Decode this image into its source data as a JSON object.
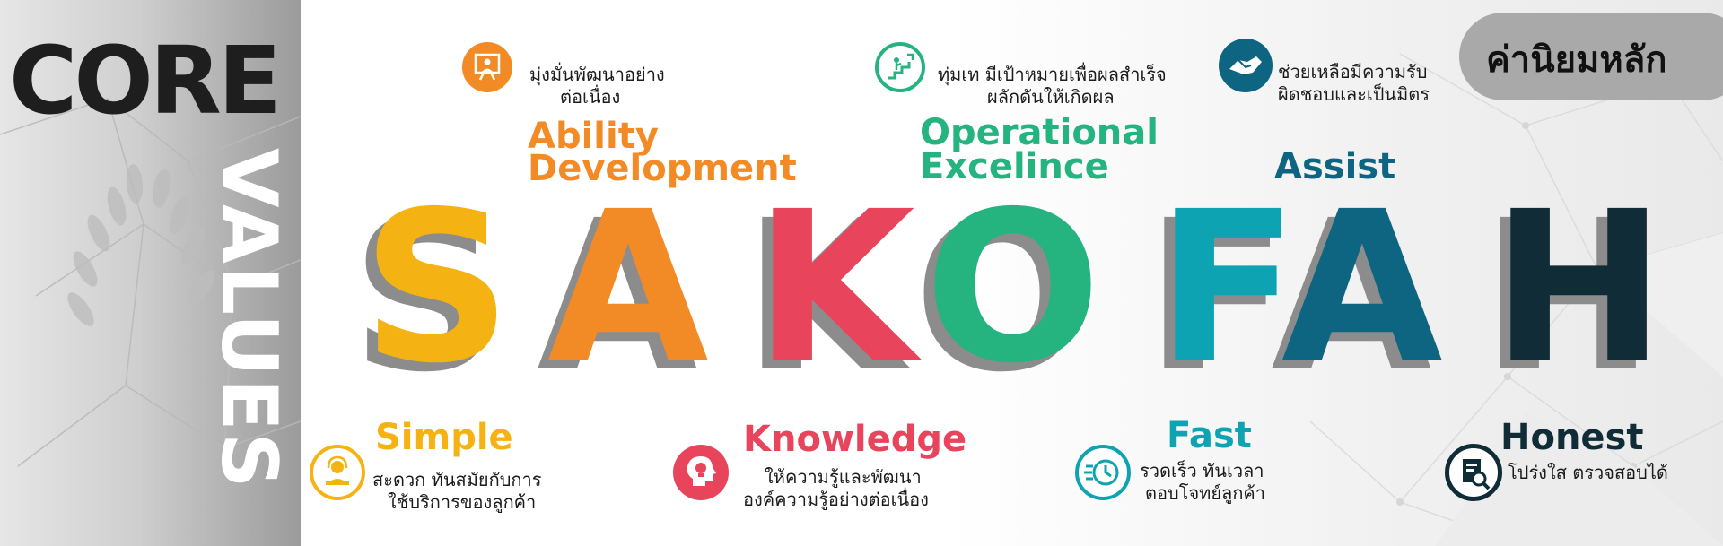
{
  "left_panel": {
    "core": "CORE",
    "values": "VALUES"
  },
  "badge": {
    "label": "ค่านิยมหลัก"
  },
  "letters": [
    {
      "char": "S",
      "color": "#f5b313"
    },
    {
      "char": "A",
      "color": "#f28a25"
    },
    {
      "char": "K",
      "color": "#e8455c"
    },
    {
      "char": "O",
      "color": "#25b380"
    },
    {
      "char": "F",
      "color": "#0ea3b2"
    },
    {
      "char": "A",
      "color": "#0e6582"
    },
    {
      "char": "H",
      "color": "#0f2c37"
    }
  ],
  "values_top": {
    "ability": {
      "title_line1": "Ability",
      "title_line2": "Development",
      "desc_line1": "มุ่งมั่นพัฒนาอย่าง",
      "desc_line2": "ต่อเนื่อง",
      "color": "#f28a25"
    },
    "operational": {
      "title_line1": "Operational",
      "title_line2": "Excelince",
      "desc_line1": "ทุ่มเท มีเป้าหมายเพื่อผลสำเร็จ",
      "desc_line2": "ผลักดันให้เกิดผล",
      "color": "#25b380"
    },
    "assist": {
      "title": "Assist",
      "desc_line1": "ช่วยเหลือมีความรับ",
      "desc_line2": "ผิดชอบและเป็นมิตร",
      "color": "#0e6582"
    }
  },
  "values_bottom": {
    "simple": {
      "title": "Simple",
      "desc_line1": "สะดวก ทันสมัยกับการ",
      "desc_line2": "ใช้บริการของลูกค้า",
      "color": "#f5b313"
    },
    "knowledge": {
      "title": "Knowledge",
      "desc_line1": "ให้ความรู้และพัฒนา",
      "desc_line2": "องค์ความรู้อย่างต่อเนื่อง",
      "color": "#e8455c"
    },
    "fast": {
      "title": "Fast",
      "desc_line1": "รวดเร็ว ทันเวลา",
      "desc_line2": "ตอบโจทย์ลูกค้า",
      "color": "#0ea3b2"
    },
    "honest": {
      "title": "Honest",
      "desc_line1": "โปร่งใส ตรวจสอบได้",
      "color": "#0f2c37"
    }
  }
}
